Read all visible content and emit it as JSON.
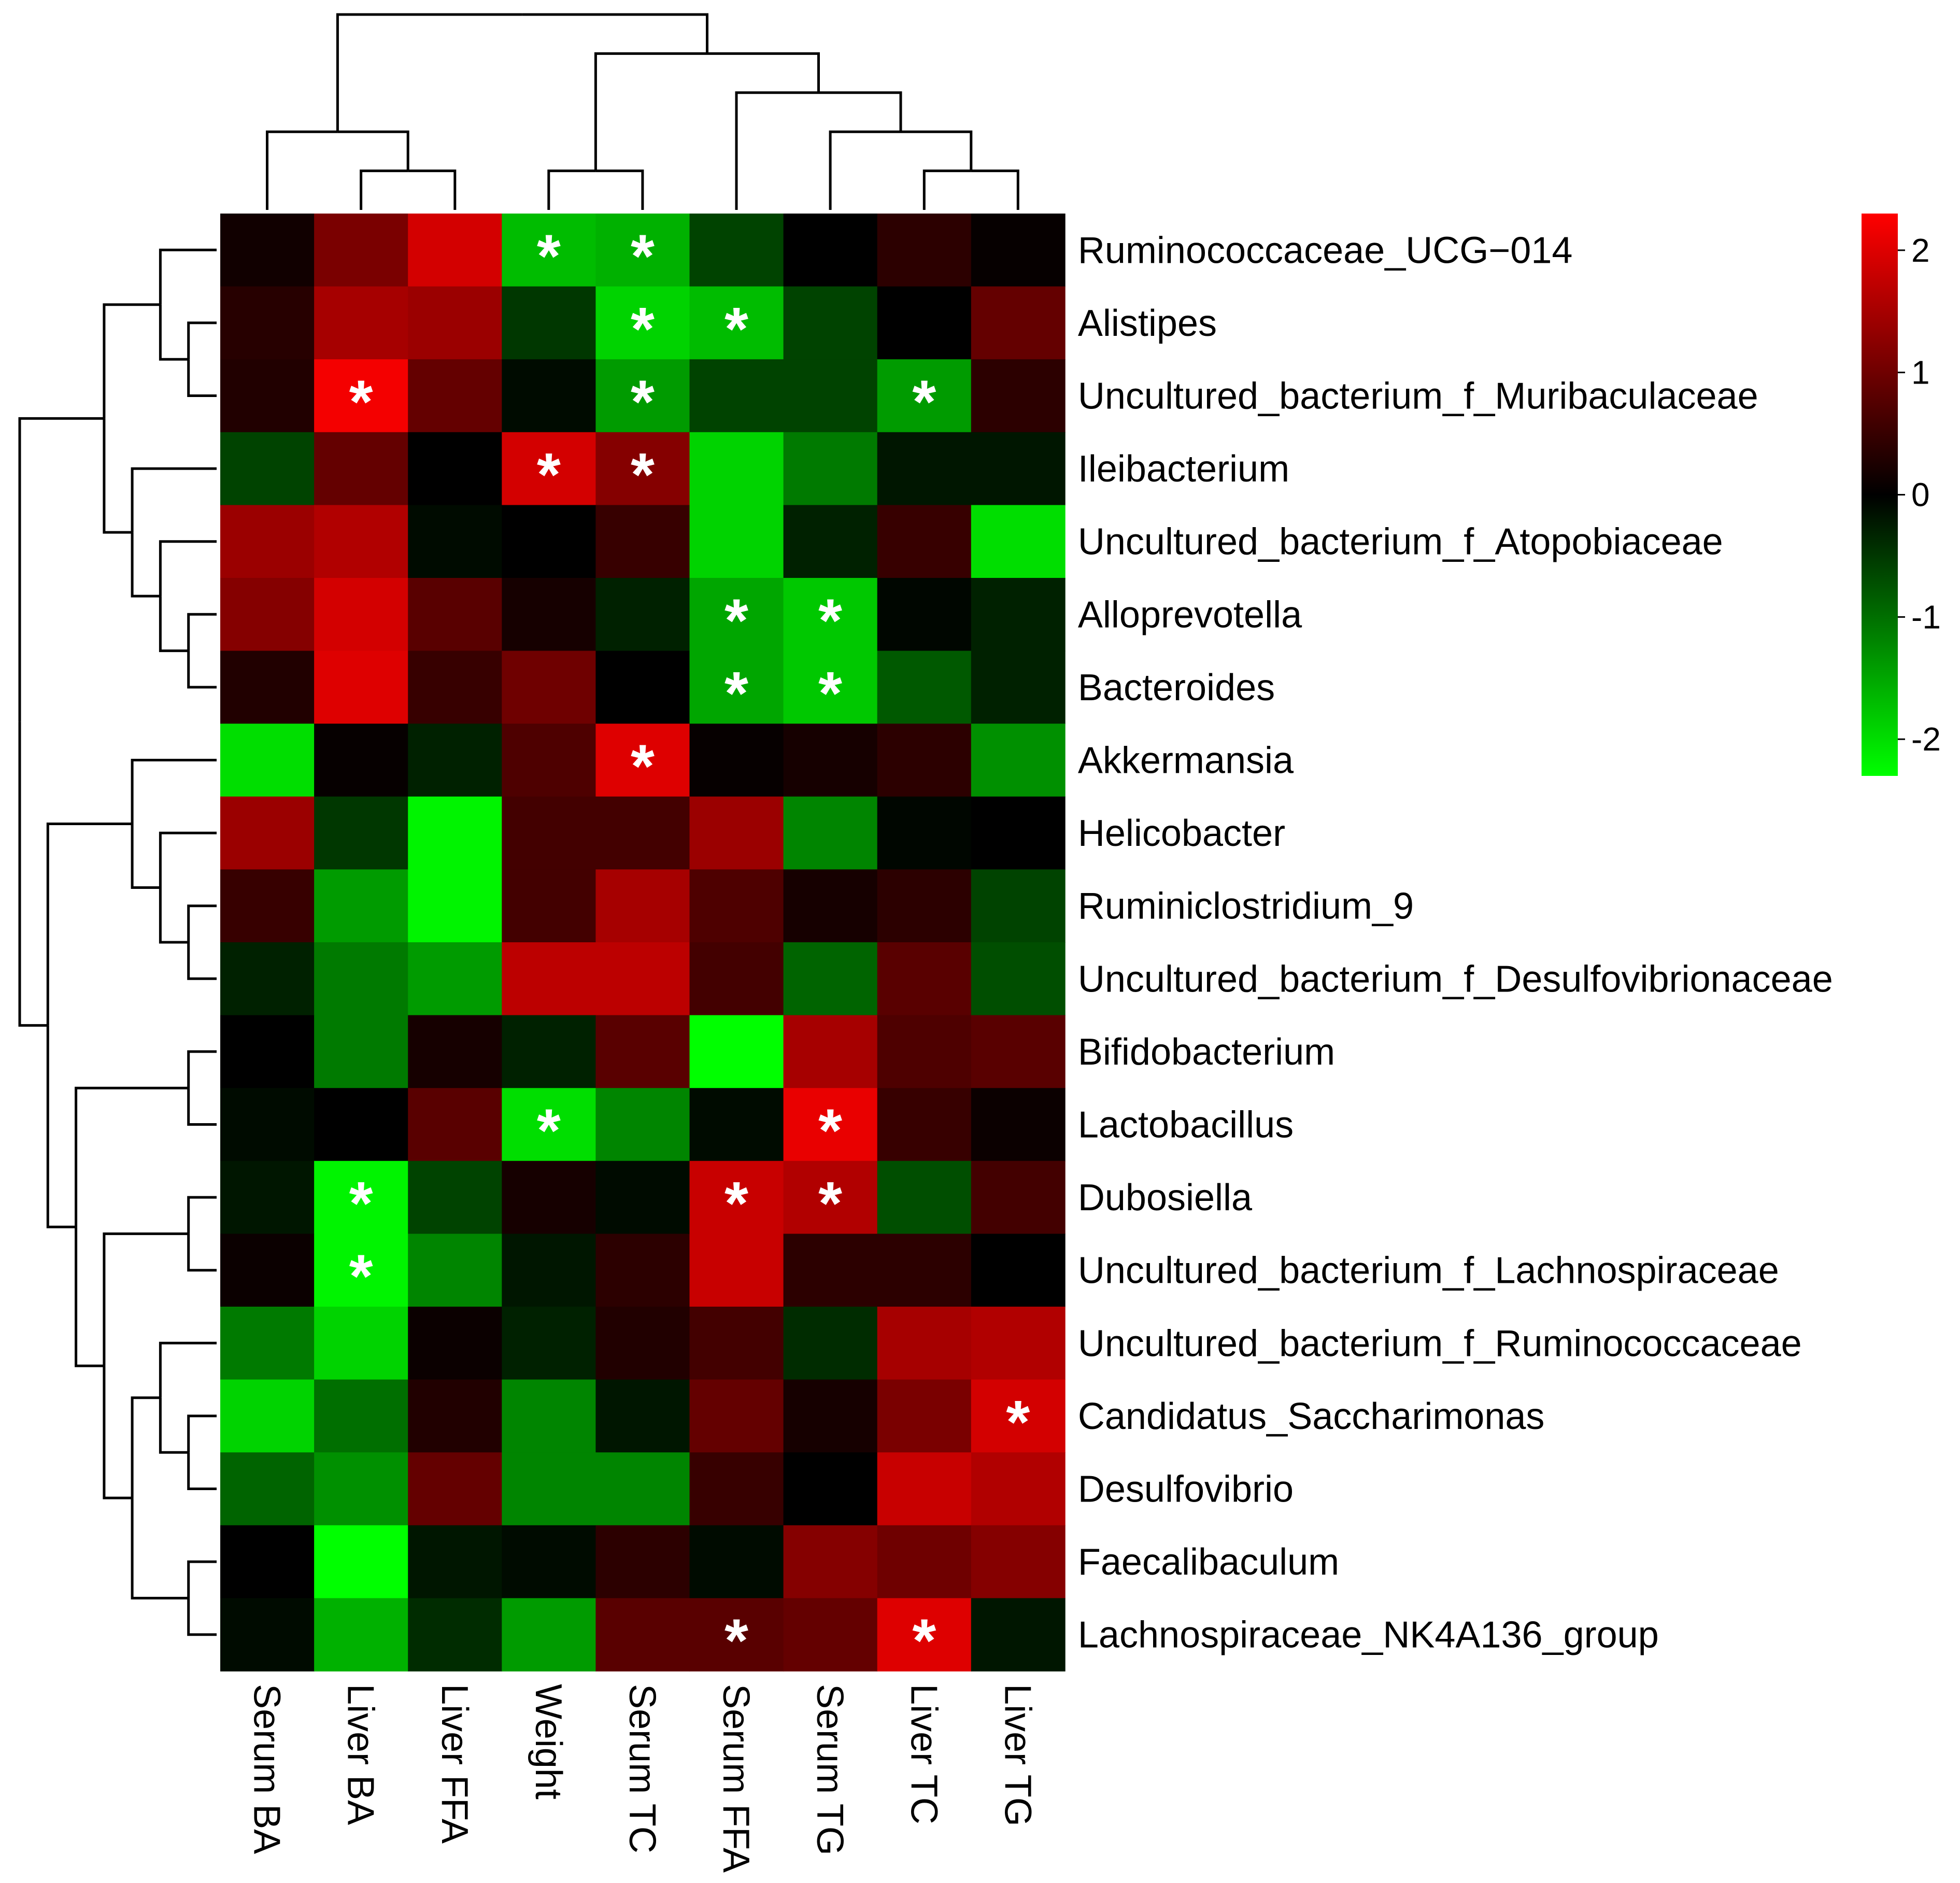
{
  "chart_data": {
    "type": "heatmap",
    "title": "",
    "columns": [
      "Serum BA",
      "Liver BA",
      "Liver FFA",
      "Weight",
      "Serum TC",
      "Serum FFA",
      "Serum TG",
      "Liver TC",
      "Liver TG"
    ],
    "rows": [
      "Ruminococcaceae_UCG−014",
      "Alistipes",
      "Uncultured_bacterium_f_Muribaculaceae",
      "Ileibacterium",
      "Uncultured_bacterium_f_Atopobiaceae",
      "Alloprevotella",
      "Bacteroides",
      "Akkermansia",
      "Helicobacter",
      "Ruminiclostridium_9",
      "Uncultured_bacterium_f_Desulfovibrionaceae",
      "Bifidobacterium",
      "Lactobacillus",
      "Dubosiella",
      "Uncultured_bacterium_f_Lachnospiraceae",
      "Uncultured_bacterium_f_Ruminococcaceae",
      "Candidatus_Saccharimonas",
      "Desulfovibrio",
      "Faecalibaculum",
      "Lachnospiraceae_NK4A136_group"
    ],
    "values": [
      [
        0.15,
        1.1,
        1.9,
        -1.7,
        -1.6,
        -0.6,
        0.0,
        0.4,
        0.05
      ],
      [
        0.35,
        1.5,
        1.4,
        -0.5,
        -1.9,
        -1.7,
        -0.6,
        0.0,
        0.9
      ],
      [
        0.3,
        2.2,
        0.9,
        -0.1,
        -1.4,
        -0.6,
        -0.6,
        -1.4,
        0.4
      ],
      [
        -0.6,
        0.9,
        0.0,
        1.9,
        1.2,
        -1.9,
        -1.1,
        -0.2,
        -0.2
      ],
      [
        1.4,
        1.6,
        -0.1,
        0.0,
        0.5,
        -1.9,
        -0.3,
        0.5,
        -2.0
      ],
      [
        1.2,
        1.9,
        0.8,
        0.2,
        -0.3,
        -1.5,
        -1.8,
        -0.05,
        -0.3
      ],
      [
        0.3,
        2.0,
        0.5,
        1.0,
        0.0,
        -1.5,
        -1.8,
        -0.8,
        -0.3
      ],
      [
        -2.0,
        0.05,
        -0.3,
        0.7,
        2.0,
        0.05,
        0.2,
        0.4,
        -1.3
      ],
      [
        1.4,
        -0.5,
        -2.2,
        0.6,
        0.6,
        1.4,
        -1.2,
        -0.05,
        0.0
      ],
      [
        0.5,
        -1.4,
        -2.2,
        0.6,
        1.5,
        0.7,
        0.2,
        0.4,
        -0.6
      ],
      [
        -0.3,
        -1.1,
        -1.4,
        1.7,
        1.7,
        0.6,
        -0.9,
        0.8,
        -0.7
      ],
      [
        0.0,
        -1.1,
        0.2,
        -0.3,
        0.8,
        -2.3,
        1.5,
        0.7,
        0.8
      ],
      [
        -0.1,
        0.0,
        0.8,
        -2.0,
        -1.2,
        -0.1,
        2.1,
        0.5,
        0.1
      ],
      [
        -0.2,
        -2.2,
        -0.6,
        0.2,
        -0.1,
        1.8,
        1.6,
        -0.7,
        0.6
      ],
      [
        0.1,
        -2.2,
        -1.2,
        -0.2,
        0.4,
        1.8,
        0.4,
        0.4,
        0.0
      ],
      [
        -1.1,
        -1.9,
        0.1,
        -0.3,
        0.3,
        0.6,
        -0.4,
        1.5,
        1.6
      ],
      [
        -1.9,
        -1.0,
        0.3,
        -1.2,
        -0.2,
        0.9,
        0.2,
        1.1,
        1.9
      ],
      [
        -0.9,
        -1.3,
        0.9,
        -1.2,
        -1.2,
        0.5,
        0.0,
        1.8,
        1.6
      ],
      [
        0.0,
        -2.4,
        -0.2,
        -0.1,
        0.4,
        -0.1,
        1.2,
        1.0,
        1.2
      ],
      [
        -0.1,
        -1.6,
        -0.4,
        -1.4,
        0.8,
        0.8,
        0.9,
        2.0,
        -0.2
      ]
    ],
    "significant": [
      [
        0,
        3
      ],
      [
        0,
        4
      ],
      [
        1,
        4
      ],
      [
        1,
        5
      ],
      [
        2,
        1
      ],
      [
        2,
        4
      ],
      [
        2,
        7
      ],
      [
        3,
        3
      ],
      [
        3,
        4
      ],
      [
        5,
        5
      ],
      [
        5,
        6
      ],
      [
        6,
        5
      ],
      [
        6,
        6
      ],
      [
        7,
        4
      ],
      [
        12,
        3
      ],
      [
        12,
        6
      ],
      [
        13,
        1
      ],
      [
        13,
        5
      ],
      [
        13,
        6
      ],
      [
        14,
        1
      ],
      [
        16,
        8
      ],
      [
        19,
        5
      ],
      [
        19,
        7
      ]
    ],
    "significance_marker": "*",
    "color_scale": {
      "range": [
        -2.3,
        2.3
      ],
      "low": "#00ff00",
      "mid": "#000000",
      "high": "#ff0000",
      "ticks": [
        2,
        1,
        0,
        -1,
        -2
      ],
      "tick_labels": [
        "2",
        "1",
        "0",
        "-1",
        "-2"
      ]
    },
    "column_dendrogram": "((Serum BA,(Liver BA,Liver FFA)),((Weight,Serum TC),(Serum FFA,(Serum TG,(Liver TC,Liver TG)))))",
    "row_dendrogram": "(((Ruminococcaceae_UCG−014,(Alistipes,Uncultured_bacterium_f_Muribaculaceae)),(Ileibacterium,(Uncultured_bacterium_f_Atopobiaceae,(Alloprevotella,Bacteroides)))),((Akkermansia,(Helicobacter,(Ruminiclostridium_9,Uncultured_bacterium_f_Desulfovibrionaceae))),((Bifidobacterium,Lactobacillus),((Dubosiella,Uncultured_bacterium_f_Lachnospiraceae),((Uncultured_bacterium_f_Ruminococcaceae,(Candidatus_Saccharimonas,Desulfovibrio)),(Faecalibaculum,Lachnospiraceae_NK4A136_group))))))"
  }
}
